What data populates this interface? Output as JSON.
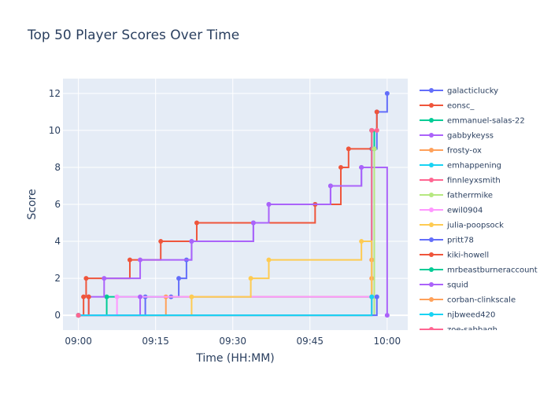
{
  "chart_data": {
    "type": "line",
    "line_shape": "step",
    "title": "Top 50 Player Scores Over Time",
    "xlabel": "Time (HH:MM)",
    "ylabel": "Score",
    "xlim": [
      "08:57",
      "10:04"
    ],
    "ylim": [
      -0.8,
      12.8
    ],
    "x_ticks": [
      "09:00",
      "09:15",
      "09:30",
      "09:45",
      "10:00"
    ],
    "y_ticks": [
      0,
      2,
      4,
      6,
      8,
      10,
      12
    ],
    "grid": true,
    "legend_position": "right",
    "series": [
      {
        "name": "galacticlucky",
        "color": "#636efa",
        "points": [
          [
            "09:00",
            0
          ],
          [
            "09:13",
            1
          ],
          [
            "09:18",
            1
          ],
          [
            "09:19.5",
            2
          ],
          [
            "09:21",
            3
          ],
          [
            "09:22",
            4
          ],
          [
            "09:34",
            5
          ],
          [
            "09:37",
            6
          ],
          [
            "09:46",
            6
          ],
          [
            "09:49",
            7
          ],
          [
            "09:55",
            8
          ],
          [
            "09:57",
            9
          ],
          [
            "09:58",
            11
          ],
          [
            "10:00",
            12
          ]
        ]
      },
      {
        "name": "eonsc_",
        "color": "#EF553B",
        "points": [
          [
            "09:00",
            0
          ],
          [
            "09:01",
            1
          ],
          [
            "09:01.5",
            2
          ],
          [
            "09:10",
            3
          ],
          [
            "09:16",
            4
          ],
          [
            "09:23",
            5
          ],
          [
            "09:46",
            6
          ],
          [
            "09:51",
            8
          ],
          [
            "09:52.5",
            9
          ],
          [
            "09:57",
            10
          ],
          [
            "09:58",
            11
          ]
        ]
      },
      {
        "name": "emmanuel-salas-22",
        "color": "#00cc96",
        "points": [
          [
            "09:00",
            0
          ],
          [
            "09:05.5",
            1
          ],
          [
            "09:57",
            10
          ],
          [
            "09:57.5",
            9
          ]
        ]
      },
      {
        "name": "gabbykeyss",
        "color": "#ab63fa",
        "points": [
          [
            "09:00",
            0
          ],
          [
            "09:02",
            1
          ],
          [
            "09:05",
            2
          ],
          [
            "09:12",
            3
          ],
          [
            "09:22",
            4
          ],
          [
            "09:34",
            5
          ],
          [
            "09:37",
            6
          ],
          [
            "09:49",
            7
          ],
          [
            "09:55",
            8
          ],
          [
            "10:00",
            0
          ]
        ]
      },
      {
        "name": "frosty-ox",
        "color": "#FFA15A",
        "points": [
          [
            "09:00",
            0
          ],
          [
            "09:17",
            1
          ],
          [
            "09:57",
            2
          ],
          [
            "09:57",
            3
          ]
        ]
      },
      {
        "name": "emhappening",
        "color": "#19d3f3",
        "points": [
          [
            "09:00",
            0
          ],
          [
            "09:57",
            1
          ],
          [
            "09:57.5",
            9
          ]
        ]
      },
      {
        "name": "finnleyxsmith",
        "color": "#FF6692",
        "points": [
          [
            "09:00",
            0
          ],
          [
            "09:57",
            10
          ],
          [
            "09:58",
            10
          ]
        ]
      },
      {
        "name": "fatherrmike",
        "color": "#B6E880",
        "points": [
          [
            "09:00",
            0
          ],
          [
            "09:57.5",
            9
          ]
        ]
      },
      {
        "name": "ewil0904",
        "color": "#FF97FF",
        "points": [
          [
            "09:00",
            0
          ],
          [
            "09:07.5",
            1
          ],
          [
            "09:58",
            1
          ]
        ]
      },
      {
        "name": "julia-poopsock",
        "color": "#FECB52",
        "points": [
          [
            "09:00",
            0
          ],
          [
            "09:22",
            1
          ],
          [
            "09:33.5",
            2
          ],
          [
            "09:37",
            3
          ],
          [
            "09:55",
            4
          ],
          [
            "09:57",
            1
          ]
        ]
      },
      {
        "name": "pritt78",
        "color": "#636efa",
        "points": [
          [
            "09:00",
            0
          ],
          [
            "09:58",
            1
          ]
        ]
      },
      {
        "name": "kiki-howell",
        "color": "#EF553B",
        "points": [
          [
            "09:00",
            0
          ],
          [
            "09:02",
            1
          ]
        ]
      },
      {
        "name": "mrbeastburneraccount",
        "color": "#00cc96",
        "points": [
          [
            "09:00",
            0
          ]
        ]
      },
      {
        "name": "squid",
        "color": "#ab63fa",
        "points": [
          [
            "09:00",
            0
          ],
          [
            "09:12",
            1
          ]
        ]
      },
      {
        "name": "corban-clinkscale",
        "color": "#FFA15A",
        "points": [
          [
            "09:00",
            0
          ]
        ]
      },
      {
        "name": "njbweed420",
        "color": "#19d3f3",
        "points": [
          [
            "09:00",
            0
          ],
          [
            "09:57",
            1
          ]
        ]
      },
      {
        "name": "zoe-sabbagh",
        "color": "#FF6692",
        "points": [
          [
            "09:00",
            0
          ]
        ]
      }
    ]
  }
}
